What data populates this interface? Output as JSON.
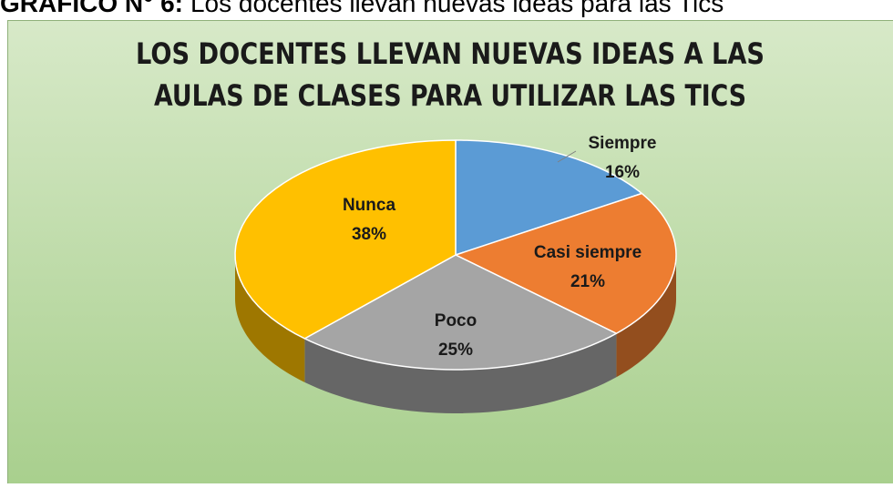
{
  "chart_data": {
    "type": "pie",
    "caption_label": "GRÁFICO N° 6:",
    "caption": "Los docentes llevan nuevas ideas para las Tics",
    "title": [
      "LOS DOCENTES LLEVAN NUEVAS IDEAS A LAS",
      "AULAS DE CLASES PARA UTILIZAR LAS TICS"
    ],
    "categories": [
      "Siempre",
      "Casi siempre",
      "Poco",
      "Nunca"
    ],
    "values": [
      16,
      21,
      25,
      38
    ],
    "value_labels": [
      "16%",
      "21%",
      "25%",
      "38%"
    ],
    "colors": [
      "#5b9bd5",
      "#ed7d31",
      "#a5a5a5",
      "#ffc000"
    ]
  }
}
